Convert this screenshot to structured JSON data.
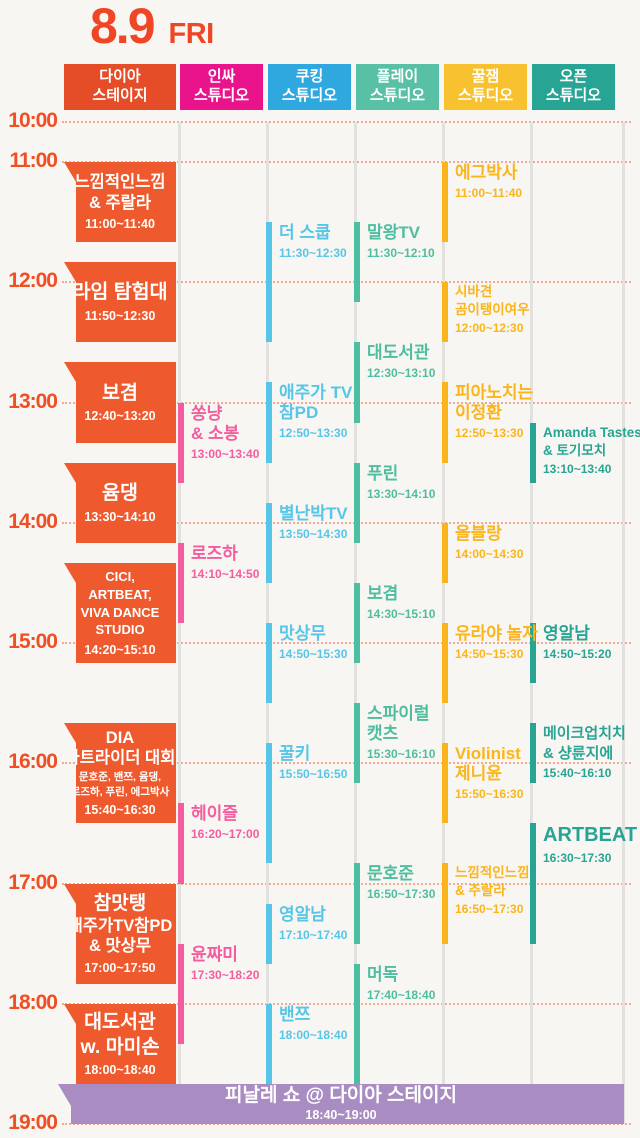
{
  "title": {
    "date": "8.9",
    "day": "FRI"
  },
  "colors": {
    "background": "#F7F6F2",
    "title": "#EF4726",
    "time_label": "#F04E23",
    "dotted_line": "#F3A893",
    "grid_line": "#E2E1DE",
    "finale_bg": "#A98CC1"
  },
  "chart_data": {
    "type": "table",
    "title": "8.9 FRI",
    "x_axis": "venues (6 studios)",
    "y_axis": "time 10:00 - 19:00",
    "hours": [
      "10:00",
      "11:00",
      "12:00",
      "13:00",
      "14:00",
      "15:00",
      "16:00",
      "17:00",
      "18:00",
      "19:00"
    ],
    "columns": [
      {
        "name": "다이아 스테이지",
        "label_lines": [
          "다이아",
          "스테이지"
        ],
        "header_color": "#E44D27",
        "event_color": "#EE5A2D",
        "events": [
          {
            "lines": [
              "느낌적인느낌",
              "& 주랄라"
            ],
            "start": "11:00",
            "end": "11:40",
            "time_label": "11:00~11:40"
          },
          {
            "lines": [
              "라임 탐험대"
            ],
            "size": "lg",
            "start": "11:50",
            "end": "12:30",
            "time_label": "11:50~12:30"
          },
          {
            "lines": [
              "보겸"
            ],
            "size": "lg",
            "start": "12:40",
            "end": "13:20",
            "time_label": "12:40~13:20"
          },
          {
            "lines": [
              "윰댕"
            ],
            "size": "lg",
            "start": "13:30",
            "end": "14:10",
            "time_label": "13:30~14:10"
          },
          {
            "lines": [
              "CICI,",
              "ARTBEAT,",
              "VIVA DANCE STUDIO"
            ],
            "size": "sm",
            "start": "14:20",
            "end": "15:10",
            "time_label": "14:20~15:10"
          },
          {
            "lines": [
              "DIA",
              "카트라이더 대회"
            ],
            "sub_lines": [
              "문호준, 밴쯔, 윰댕,",
              "로즈하, 푸린, 에그박사"
            ],
            "start": "15:40",
            "end": "16:30",
            "time_label": "15:40~16:30"
          },
          {
            "lines": [
              "참맛탱",
              "애주가TV참PD",
              "& 맛상무"
            ],
            "first_big": true,
            "start": "17:00",
            "end": "17:50",
            "time_label": "17:00~17:50"
          },
          {
            "lines": [
              "대도서관",
              "w. 마미손"
            ],
            "size": "lg",
            "start": "18:00",
            "end": "18:40",
            "time_label": "18:00~18:40"
          }
        ]
      },
      {
        "name": "인싸 스튜디오",
        "label_lines": [
          "인싸",
          "스튜디오"
        ],
        "header_color": "#E9138B",
        "event_color": "#F55C9E",
        "events": [
          {
            "lines": [
              "쏭냥",
              "& 소봉"
            ],
            "start": "13:00",
            "end": "13:40",
            "time_label": "13:00~13:40"
          },
          {
            "lines": [
              "로즈하"
            ],
            "start": "14:10",
            "end": "14:50",
            "time_label": "14:10~14:50"
          },
          {
            "lines": [
              "헤이즐"
            ],
            "start": "16:20",
            "end": "17:00",
            "time_label": "16:20~17:00"
          },
          {
            "lines": [
              "윤쨔미"
            ],
            "start": "17:30",
            "end": "18:20",
            "time_label": "17:30~18:20"
          }
        ]
      },
      {
        "name": "쿠킹 스튜디오",
        "label_lines": [
          "쿠킹",
          "스튜디오"
        ],
        "header_color": "#2FA8DF",
        "event_color": "#55C6E8",
        "events": [
          {
            "lines": [
              "더 스쿱"
            ],
            "start": "11:30",
            "end": "12:30",
            "time_label": "11:30~12:30"
          },
          {
            "lines": [
              "애주가 TV",
              "참PD"
            ],
            "start": "12:50",
            "end": "13:30",
            "time_label": "12:50~13:30"
          },
          {
            "lines": [
              "별난박TV"
            ],
            "start": "13:50",
            "end": "14:30",
            "time_label": "13:50~14:30"
          },
          {
            "lines": [
              "맛상무"
            ],
            "start": "14:50",
            "end": "15:30",
            "time_label": "14:50~15:30"
          },
          {
            "lines": [
              "꿀키"
            ],
            "start": "15:50",
            "end": "16:50",
            "time_label": "15:50~16:50"
          },
          {
            "lines": [
              "영알남"
            ],
            "start": "17:10",
            "end": "17:40",
            "time_label": "17:10~17:40"
          },
          {
            "lines": [
              "밴쯔"
            ],
            "start": "18:00",
            "end": "18:40",
            "time_label": "18:00~18:40"
          }
        ]
      },
      {
        "name": "플레이 스튜디오",
        "label_lines": [
          "플레이",
          "스튜디오"
        ],
        "header_color": "#58C0A5",
        "event_color": "#4EBEA0",
        "events": [
          {
            "lines": [
              "말왕TV"
            ],
            "start": "11:30",
            "end": "12:10",
            "time_label": "11:30~12:10"
          },
          {
            "lines": [
              "대도서관"
            ],
            "start": "12:30",
            "end": "13:10",
            "time_label": "12:30~13:10"
          },
          {
            "lines": [
              "푸린"
            ],
            "start": "13:30",
            "end": "14:10",
            "time_label": "13:30~14:10"
          },
          {
            "lines": [
              "보겸"
            ],
            "start": "14:30",
            "end": "15:10",
            "time_label": "14:30~15:10"
          },
          {
            "lines": [
              "스파이럴",
              "캣츠"
            ],
            "start": "15:30",
            "end": "16:10",
            "time_label": "15:30~16:10"
          },
          {
            "lines": [
              "문호준"
            ],
            "start": "16:50",
            "end": "17:30",
            "time_label": "16:50~17:30"
          },
          {
            "lines": [
              "머독"
            ],
            "start": "17:40",
            "end": "18:40",
            "time_label": "17:40~18:40"
          }
        ]
      },
      {
        "name": "꿀잼 스튜디오",
        "label_lines": [
          "꿀잼",
          "스튜디오"
        ],
        "header_color": "#F8C12F",
        "event_color": "#FBB41A",
        "events": [
          {
            "lines": [
              "에그박사"
            ],
            "start": "11:00",
            "end": "11:40",
            "time_label": "11:00~11:40"
          },
          {
            "lines": [
              "시바견",
              "곰이탱이여우"
            ],
            "size": "sm",
            "start": "12:00",
            "end": "12:30",
            "time_label": "12:00~12:30"
          },
          {
            "lines": [
              "피아노치는",
              "이정환"
            ],
            "start": "12:50",
            "end": "13:30",
            "time_label": "12:50~13:30"
          },
          {
            "lines": [
              "올블랑"
            ],
            "start": "14:00",
            "end": "14:30",
            "time_label": "14:00~14:30"
          },
          {
            "lines": [
              "유라야 놀자"
            ],
            "start": "14:50",
            "end": "15:30",
            "time_label": "14:50~15:30"
          },
          {
            "lines": [
              "Violinist",
              "제니윤"
            ],
            "start": "15:50",
            "end": "16:30",
            "time_label": "15:50~16:30"
          },
          {
            "lines": [
              "느낌적인느낌",
              "& 주랄라"
            ],
            "size": "sm",
            "start": "16:50",
            "end": "17:30",
            "time_label": "16:50~17:30"
          }
        ]
      },
      {
        "name": "오픈 스튜디오",
        "label_lines": [
          "오픈",
          "스튜디오"
        ],
        "header_color": "#27A493",
        "event_color": "#27A493",
        "events": [
          {
            "lines": [
              "Amanda Tastes",
              "& 토기모치"
            ],
            "size": "sm",
            "start": "13:10",
            "end": "13:40",
            "time_label": "13:10~13:40"
          },
          {
            "lines": [
              "영알남"
            ],
            "start": "14:50",
            "end": "15:20",
            "time_label": "14:50~15:20"
          },
          {
            "lines": [
              "메이크업치치",
              "& 샹륜지에"
            ],
            "size": "md",
            "start": "15:40",
            "end": "16:10",
            "time_label": "15:40~16:10"
          },
          {
            "lines": [
              "ARTBEAT"
            ],
            "size": "lg",
            "start": "16:30",
            "end": "17:30",
            "time_label": "16:30~17:30"
          }
        ]
      }
    ],
    "finale": {
      "name": "피날레 쇼 @ 다이아 스테이지",
      "start": "18:40",
      "end": "19:00",
      "time_label": "18:40~19:00"
    }
  }
}
